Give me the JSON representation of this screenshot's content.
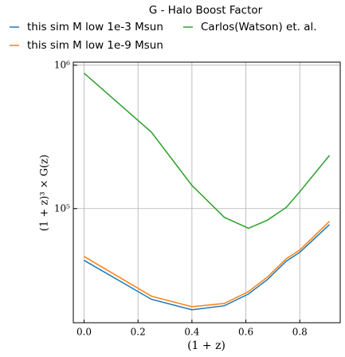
{
  "chart_data": {
    "type": "line",
    "title": "G - Halo Boost Factor",
    "xlabel": "(1 + z)",
    "ylabel": "(1 + z)³ × G(z)",
    "x": [
      0,
      0.25,
      0.4,
      0.52,
      0.61,
      0.68,
      0.75,
      0.8,
      0.91
    ],
    "series": [
      {
        "name": "this sim M low 1e-3 Msun",
        "color": "#1f77b4",
        "values": [
          43600,
          23300,
          19700,
          21000,
          25400,
          32000,
          43000,
          49500,
          77400
        ]
      },
      {
        "name": "this sim M low 1e-9 Msun",
        "color": "#ff7f0e",
        "values": [
          46400,
          24500,
          20700,
          21800,
          26400,
          33300,
          44700,
          51400,
          81500
        ]
      },
      {
        "name": "Carlos(Watson) et. al.",
        "color": "#2ca02c",
        "values": [
          880000,
          341000,
          145000,
          87000,
          73000,
          83000,
          102000,
          131000,
          235000
        ]
      }
    ],
    "xlim": [
      -0.04,
      0.95
    ],
    "xticks": [
      {
        "value": 0,
        "label": "0.0"
      },
      0.2,
      0.4,
      0.6,
      0.8
    ],
    "ylim": [
      16000,
      1050000
    ],
    "yticks": [
      {
        "value": 100000,
        "label": "10⁵"
      },
      {
        "value": 1000000,
        "label": "10⁶"
      }
    ],
    "yscale": "log",
    "grid": true
  }
}
